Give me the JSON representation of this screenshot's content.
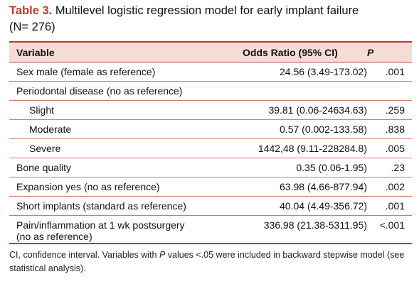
{
  "caption": {
    "label": "Table 3.",
    "title": "Multilevel logistic regression model for early implant failure",
    "subtitle": "(N= 276)"
  },
  "table": {
    "headers": {
      "variable": "Variable",
      "odds_ratio": "Odds Ratio (95% CI)",
      "p": "P"
    },
    "rows": [
      {
        "variable": "Sex male (female as reference)",
        "odds_ratio": "24.56 (3.49-173.02)",
        "p": ".001"
      },
      {
        "variable": "Periodontal disease (no as reference)",
        "odds_ratio": "",
        "p": ""
      },
      {
        "variable": "Slight",
        "odds_ratio": "39.81 (0.06-24634.63)",
        "p": ".259"
      },
      {
        "variable": "Moderate",
        "odds_ratio": "0.57 (0.002-133.58)",
        "p": ".838"
      },
      {
        "variable": "Severe",
        "odds_ratio": "1442,48 (9.11-228284.8)",
        "p": ".005"
      },
      {
        "variable": "Bone quality",
        "odds_ratio": "0.35 (0.06-1.95)",
        "p": ".23"
      },
      {
        "variable": "Expansion yes (no as reference)",
        "odds_ratio": "63.98 (4.66-877.94)",
        "p": ".002"
      },
      {
        "variable": "Short implants (standard as reference)",
        "odds_ratio": "40.04 (4.49-356.72)",
        "p": ".001"
      },
      {
        "variable_line1": "Pain/inflammation at 1 wk postsurgery",
        "variable_line2": "(no as reference)",
        "odds_ratio": "336.98 (21.38-5311.95)",
        "p": "<.001"
      }
    ]
  },
  "footnote": {
    "part1": "CI, confidence interval. Variables with ",
    "p_symbol": "P",
    "part2": " values <.05 were included in backward stepwise model (see statistical analysis)."
  },
  "colors": {
    "accent": "#c0392b",
    "header_fill": "#f6dcd6"
  }
}
